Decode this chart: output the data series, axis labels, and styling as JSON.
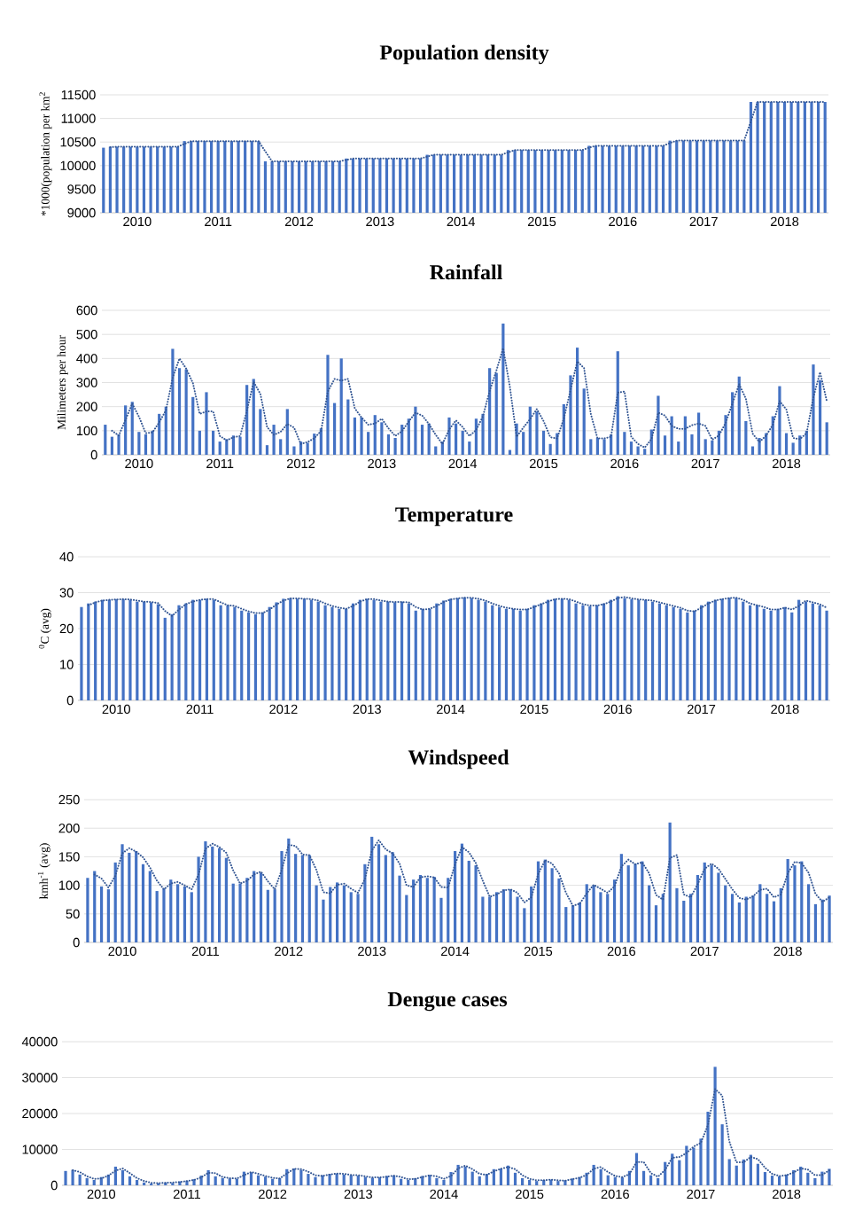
{
  "chart_data": [
    {
      "type": "bar",
      "title": "Population density",
      "ylabel": "*1000(population per km$^{2}$",
      "categories": [
        null,
        null,
        null,
        null,
        null,
        "2010",
        null,
        null,
        null,
        null,
        null,
        null,
        null,
        null,
        null,
        null,
        null,
        "2011",
        null,
        null,
        null,
        null,
        null,
        null,
        null,
        null,
        null,
        null,
        null,
        "2012",
        null,
        null,
        null,
        null,
        null,
        null,
        null,
        null,
        null,
        null,
        null,
        "2013",
        null,
        null,
        null,
        null,
        null,
        null,
        null,
        null,
        null,
        null,
        null,
        "2014",
        null,
        null,
        null,
        null,
        null,
        null,
        null,
        null,
        null,
        null,
        null,
        "2015",
        null,
        null,
        null,
        null,
        null,
        null,
        null,
        null,
        null,
        null,
        null,
        "2016",
        null,
        null,
        null,
        null,
        null,
        null,
        null,
        null,
        null,
        null,
        null,
        "2017",
        null,
        null,
        null,
        null,
        null,
        null,
        null,
        null,
        null,
        null,
        null,
        "2018",
        null,
        null,
        null,
        null,
        null,
        null
      ],
      "series": [
        {
          "color": "#4472c4",
          "values": [
            10380,
            10400,
            10400,
            10400,
            10400,
            10400,
            10400,
            10400,
            10400,
            10400,
            10400,
            10400,
            10520,
            10520,
            10520,
            10520,
            10520,
            10520,
            10520,
            10520,
            10520,
            10520,
            10520,
            10520,
            10090,
            10090,
            10090,
            10090,
            10090,
            10090,
            10090,
            10090,
            10090,
            10090,
            10090,
            10090,
            10150,
            10150,
            10150,
            10150,
            10150,
            10150,
            10150,
            10150,
            10150,
            10150,
            10150,
            10150,
            10230,
            10230,
            10230,
            10230,
            10230,
            10230,
            10230,
            10230,
            10230,
            10230,
            10230,
            10230,
            10330,
            10330,
            10330,
            10330,
            10330,
            10330,
            10330,
            10330,
            10330,
            10330,
            10330,
            10330,
            10420,
            10420,
            10420,
            10420,
            10420,
            10420,
            10420,
            10420,
            10420,
            10420,
            10420,
            10420,
            10530,
            10530,
            10530,
            10530,
            10530,
            10530,
            10530,
            10530,
            10530,
            10530,
            10530,
            10530,
            11350,
            11350,
            11350,
            11350,
            11350,
            11350,
            11350,
            11350,
            11350,
            11350,
            11350,
            11350
          ]
        },
        {
          "type": "line",
          "line_style": "dotted",
          "color": "#335693",
          "values": [
            null,
            10390,
            10400,
            10400,
            10400,
            10400,
            10400,
            10400,
            10400,
            10400,
            10400,
            10400,
            10460,
            10520,
            10520,
            10520,
            10520,
            10520,
            10520,
            10520,
            10520,
            10520,
            10520,
            10520,
            10300,
            10090,
            10090,
            10090,
            10090,
            10090,
            10090,
            10090,
            10090,
            10090,
            10090,
            10090,
            10120,
            10150,
            10150,
            10150,
            10150,
            10150,
            10150,
            10150,
            10150,
            10150,
            10150,
            10150,
            10190,
            10230,
            10230,
            10230,
            10230,
            10230,
            10230,
            10230,
            10230,
            10230,
            10230,
            10230,
            10280,
            10330,
            10330,
            10330,
            10330,
            10330,
            10330,
            10330,
            10330,
            10330,
            10330,
            10330,
            10380,
            10420,
            10420,
            10420,
            10420,
            10420,
            10420,
            10420,
            10420,
            10420,
            10420,
            10420,
            10480,
            10530,
            10530,
            10530,
            10530,
            10530,
            10530,
            10530,
            10530,
            10530,
            10530,
            10530,
            10940,
            11350,
            11350,
            11350,
            11350,
            11350,
            11350,
            11350,
            11350,
            11350,
            11350,
            11350
          ]
        }
      ],
      "ylim": [
        9000,
        11500
      ],
      "yticks": [
        9000,
        9500,
        10000,
        10500,
        11000,
        11500
      ],
      "grid": "y"
    },
    {
      "type": "bar",
      "title": "Rainfall",
      "ylabel": "Milimeters per hour",
      "categories": [
        null,
        null,
        null,
        null,
        null,
        "2010",
        null,
        null,
        null,
        null,
        null,
        null,
        null,
        null,
        null,
        null,
        null,
        "2011",
        null,
        null,
        null,
        null,
        null,
        null,
        null,
        null,
        null,
        null,
        null,
        "2012",
        null,
        null,
        null,
        null,
        null,
        null,
        null,
        null,
        null,
        null,
        null,
        "2013",
        null,
        null,
        null,
        null,
        null,
        null,
        null,
        null,
        null,
        null,
        null,
        "2014",
        null,
        null,
        null,
        null,
        null,
        null,
        null,
        null,
        null,
        null,
        null,
        "2015",
        null,
        null,
        null,
        null,
        null,
        null,
        null,
        null,
        null,
        null,
        null,
        "2016",
        null,
        null,
        null,
        null,
        null,
        null,
        null,
        null,
        null,
        null,
        null,
        "2017",
        null,
        null,
        null,
        null,
        null,
        null,
        null,
        null,
        null,
        null,
        null,
        "2018",
        null,
        null,
        null,
        null,
        null,
        null
      ],
      "series": [
        {
          "color": "#4472c4",
          "values": [
            125,
            75,
            85,
            205,
            220,
            95,
            85,
            100,
            170,
            200,
            440,
            360,
            355,
            240,
            100,
            260,
            100,
            55,
            65,
            80,
            75,
            290,
            315,
            190,
            40,
            125,
            65,
            190,
            35,
            55,
            50,
            88,
            110,
            415,
            215,
            400,
            230,
            155,
            155,
            95,
            165,
            135,
            85,
            70,
            125,
            150,
            200,
            125,
            130,
            35,
            55,
            155,
            130,
            100,
            55,
            150,
            170,
            360,
            340,
            545,
            20,
            130,
            95,
            200,
            180,
            100,
            45,
            90,
            210,
            330,
            445,
            275,
            65,
            70,
            65,
            85,
            430,
            95,
            55,
            35,
            25,
            105,
            245,
            80,
            160,
            55,
            160,
            85,
            175,
            65,
            60,
            100,
            165,
            260,
            325,
            140,
            35,
            70,
            90,
            160,
            285,
            90,
            50,
            80,
            100,
            375,
            310,
            135
          ]
        },
        {
          "type": "line",
          "line_style": "dotted",
          "color": "#335693",
          "values": [
            null,
            100,
            80,
            145,
            213,
            158,
            90,
            93,
            135,
            185,
            320,
            400,
            358,
            298,
            170,
            180,
            180,
            78,
            60,
            73,
            78,
            183,
            303,
            253,
            115,
            83,
            95,
            128,
            113,
            45,
            53,
            69,
            99,
            263,
            315,
            308,
            315,
            193,
            155,
            125,
            130,
            150,
            110,
            78,
            98,
            138,
            175,
            163,
            128,
            83,
            45,
            105,
            143,
            115,
            78,
            103,
            160,
            265,
            350,
            443,
            283,
            75,
            113,
            148,
            190,
            140,
            73,
            68,
            150,
            270,
            388,
            360,
            170,
            68,
            68,
            75,
            258,
            263,
            75,
            45,
            30,
            65,
            175,
            163,
            120,
            108,
            108,
            123,
            130,
            120,
            63,
            80,
            133,
            213,
            293,
            233,
            88,
            53,
            80,
            125,
            223,
            188,
            70,
            65,
            90,
            238,
            343,
            223
          ]
        }
      ],
      "ylim": [
        0,
        600
      ],
      "yticks": [
        0,
        100,
        200,
        300,
        400,
        500,
        600
      ],
      "grid": "y"
    },
    {
      "type": "bar",
      "title": "Temperature",
      "ylabel": "$^{0}$C (avg)",
      "categories": [
        null,
        null,
        null,
        null,
        null,
        "2010",
        null,
        null,
        null,
        null,
        null,
        null,
        null,
        null,
        null,
        null,
        null,
        "2011",
        null,
        null,
        null,
        null,
        null,
        null,
        null,
        null,
        null,
        null,
        null,
        "2012",
        null,
        null,
        null,
        null,
        null,
        null,
        null,
        null,
        null,
        null,
        null,
        "2013",
        null,
        null,
        null,
        null,
        null,
        null,
        null,
        null,
        null,
        null,
        null,
        "2014",
        null,
        null,
        null,
        null,
        null,
        null,
        null,
        null,
        null,
        null,
        null,
        "2015",
        null,
        null,
        null,
        null,
        null,
        null,
        null,
        null,
        null,
        null,
        null,
        "2016",
        null,
        null,
        null,
        null,
        null,
        null,
        null,
        null,
        null,
        null,
        null,
        "2017",
        null,
        null,
        null,
        null,
        null,
        null,
        null,
        null,
        null,
        null,
        null,
        "2018",
        null,
        null,
        null,
        null,
        null,
        null
      ],
      "series": [
        {
          "color": "#4472c4",
          "values": [
            26,
            27,
            27.5,
            28,
            28,
            28.2,
            28.2,
            28,
            27.5,
            27.5,
            27.3,
            26.8,
            23,
            24,
            26.5,
            27,
            28,
            28,
            28.3,
            28,
            26.5,
            26.5,
            26,
            25,
            24.5,
            24,
            24.5,
            26,
            27.3,
            28.3,
            28.5,
            28.3,
            28.3,
            28,
            27.5,
            26.5,
            26,
            25.5,
            25.5,
            27,
            28,
            28.3,
            28,
            27.5,
            27.5,
            27.3,
            27.5,
            27,
            25,
            25.5,
            25.5,
            27,
            27.8,
            28.3,
            28.5,
            28.7,
            28.5,
            28,
            27.5,
            26.5,
            26,
            25.5,
            25.5,
            25,
            25.5,
            26.5,
            27,
            28,
            28.3,
            28.3,
            28,
            27,
            26.5,
            26.2,
            26.5,
            27,
            28,
            29,
            28.5,
            28.2,
            28,
            28,
            27.5,
            27,
            26.5,
            26,
            25.5,
            24.5,
            25,
            26.5,
            27.5,
            28,
            28.3,
            28.6,
            28.5,
            27.5,
            26.5,
            26.5,
            25.5,
            25,
            25.5,
            26,
            24.5,
            28,
            27.5,
            27,
            26.5,
            25
          ]
        },
        {
          "type": "line",
          "line_style": "dotted",
          "color": "#335693",
          "values": [
            null,
            26.5,
            27.3,
            27.8,
            28,
            28.1,
            28.2,
            28.1,
            27.8,
            27.5,
            27.4,
            27.1,
            24.9,
            23.5,
            25.3,
            26.8,
            27.5,
            28,
            28.2,
            28.2,
            27.3,
            26.5,
            26.3,
            25.5,
            24.8,
            24.3,
            24.3,
            25.3,
            26.7,
            27.8,
            28.4,
            28.4,
            28.3,
            28.2,
            27.8,
            27,
            26.3,
            25.8,
            25.5,
            26.3,
            27.5,
            28.2,
            28.2,
            27.8,
            27.5,
            27.4,
            27.4,
            27.3,
            26,
            25.3,
            25.5,
            26.3,
            27.4,
            28.1,
            28.4,
            28.6,
            28.6,
            28.3,
            27.8,
            27,
            26.3,
            25.8,
            25.5,
            25.3,
            25.3,
            26,
            26.8,
            27.5,
            28.2,
            28.3,
            28.2,
            27.5,
            26.8,
            26.4,
            26.4,
            26.8,
            27.5,
            28.5,
            28.8,
            28.4,
            28.1,
            28,
            27.8,
            27.3,
            26.8,
            26.3,
            25.8,
            25,
            24.8,
            25.8,
            27,
            27.8,
            28.2,
            28.5,
            28.6,
            28,
            27,
            26.5,
            26,
            25.3,
            25.3,
            25.8,
            25.3,
            26.3,
            27.8,
            27.3,
            26.8,
            25.8
          ]
        }
      ],
      "ylim": [
        0,
        40
      ],
      "yticks": [
        0,
        10,
        20,
        30,
        40
      ],
      "grid": "y"
    },
    {
      "type": "bar",
      "title": "Windspeed",
      "ylabel": "kmh$^{-1}$ (avg)",
      "categories": [
        null,
        null,
        null,
        null,
        null,
        "2010",
        null,
        null,
        null,
        null,
        null,
        null,
        null,
        null,
        null,
        null,
        null,
        "2011",
        null,
        null,
        null,
        null,
        null,
        null,
        null,
        null,
        null,
        null,
        null,
        "2012",
        null,
        null,
        null,
        null,
        null,
        null,
        null,
        null,
        null,
        null,
        null,
        "2013",
        null,
        null,
        null,
        null,
        null,
        null,
        null,
        null,
        null,
        null,
        null,
        "2014",
        null,
        null,
        null,
        null,
        null,
        null,
        null,
        null,
        null,
        null,
        null,
        "2015",
        null,
        null,
        null,
        null,
        null,
        null,
        null,
        null,
        null,
        null,
        null,
        "2016",
        null,
        null,
        null,
        null,
        null,
        null,
        null,
        null,
        null,
        null,
        null,
        "2017",
        null,
        null,
        null,
        null,
        null,
        null,
        null,
        null,
        null,
        null,
        null,
        "2018",
        null,
        null,
        null,
        null,
        null,
        null
      ],
      "series": [
        {
          "color": "#4472c4",
          "values": [
            113,
            125,
            98,
            93,
            140,
            172,
            157,
            160,
            137,
            125,
            90,
            95,
            110,
            102,
            98,
            88,
            150,
            177,
            168,
            165,
            148,
            103,
            103,
            113,
            125,
            122,
            92,
            93,
            160,
            182,
            155,
            153,
            153,
            100,
            75,
            97,
            105,
            100,
            88,
            85,
            137,
            185,
            172,
            153,
            158,
            117,
            83,
            110,
            118,
            113,
            115,
            78,
            113,
            160,
            173,
            143,
            135,
            80,
            80,
            88,
            93,
            93,
            80,
            60,
            98,
            142,
            145,
            130,
            112,
            62,
            65,
            70,
            102,
            100,
            88,
            85,
            110,
            155,
            135,
            138,
            142,
            100,
            65,
            85,
            210,
            95,
            73,
            85,
            118,
            140,
            135,
            122,
            100,
            85,
            70,
            80,
            82,
            102,
            85,
            72,
            95,
            146,
            135,
            142,
            102,
            67,
            75,
            82
          ]
        },
        {
          "type": "line",
          "line_style": "dotted",
          "color": "#335693",
          "values": [
            null,
            119,
            112,
            96,
            117,
            156,
            165,
            159,
            149,
            131,
            108,
            93,
            103,
            106,
            100,
            93,
            119,
            164,
            173,
            167,
            157,
            126,
            103,
            108,
            119,
            124,
            107,
            93,
            127,
            171,
            169,
            154,
            153,
            127,
            88,
            86,
            101,
            103,
            94,
            87,
            111,
            161,
            179,
            163,
            156,
            138,
            100,
            97,
            114,
            116,
            114,
            97,
            96,
            137,
            167,
            158,
            139,
            108,
            80,
            84,
            91,
            93,
            87,
            70,
            79,
            120,
            144,
            138,
            121,
            87,
            64,
            68,
            86,
            101,
            94,
            87,
            98,
            133,
            145,
            137,
            140,
            121,
            83,
            75,
            148,
            153,
            84,
            79,
            102,
            129,
            138,
            129,
            111,
            93,
            78,
            75,
            81,
            92,
            94,
            79,
            84,
            121,
            141,
            139,
            122,
            85,
            71,
            79
          ]
        }
      ],
      "ylim": [
        0,
        250
      ],
      "yticks": [
        0,
        50,
        100,
        150,
        200,
        250
      ],
      "grid": "y"
    },
    {
      "type": "bar",
      "title": "Dengue cases",
      "categories": [
        null,
        null,
        null,
        null,
        null,
        "2010",
        null,
        null,
        null,
        null,
        null,
        null,
        null,
        null,
        null,
        null,
        null,
        "2011",
        null,
        null,
        null,
        null,
        null,
        null,
        null,
        null,
        null,
        null,
        null,
        "2012",
        null,
        null,
        null,
        null,
        null,
        null,
        null,
        null,
        null,
        null,
        null,
        "2013",
        null,
        null,
        null,
        null,
        null,
        null,
        null,
        null,
        null,
        null,
        null,
        "2014",
        null,
        null,
        null,
        null,
        null,
        null,
        null,
        null,
        null,
        null,
        null,
        "2015",
        null,
        null,
        null,
        null,
        null,
        null,
        null,
        null,
        null,
        null,
        null,
        "2016",
        null,
        null,
        null,
        null,
        null,
        null,
        null,
        null,
        null,
        null,
        null,
        "2017",
        null,
        null,
        null,
        null,
        null,
        null,
        null,
        null,
        null,
        null,
        null,
        "2018",
        null,
        null,
        null,
        null,
        null,
        null
      ],
      "series": [
        {
          "color": "#4472c4",
          "values": [
            4000,
            4300,
            3000,
            2000,
            1500,
            2300,
            3000,
            5200,
            4200,
            2500,
            1500,
            800,
            500,
            600,
            800,
            700,
            1100,
            1300,
            1700,
            2700,
            4200,
            2500,
            2000,
            1900,
            1800,
            3800,
            3600,
            2800,
            2400,
            1800,
            2000,
            4500,
            4700,
            4300,
            3200,
            2300,
            2800,
            3200,
            3300,
            3000,
            2800,
            2700,
            2300,
            2100,
            2200,
            2600,
            2700,
            1800,
            1500,
            2000,
            2600,
            2900,
            2000,
            1500,
            3700,
            5700,
            5200,
            3800,
            2500,
            3200,
            4500,
            4700,
            5500,
            3500,
            2000,
            1500,
            1200,
            1500,
            1600,
            1200,
            1400,
            1900,
            2300,
            3500,
            5700,
            4500,
            2800,
            2300,
            2200,
            4000,
            9000,
            4000,
            2800,
            2000,
            6500,
            8800,
            7000,
            11000,
            10500,
            13000,
            20500,
            33000,
            17000,
            7300,
            5500,
            7200,
            8500,
            6000,
            3700,
            2700,
            2500,
            3000,
            4200,
            5200,
            3500,
            2000,
            3800,
            4600
          ]
        },
        {
          "type": "line",
          "line_style": "dotted",
          "color": "#335693",
          "values": [
            null,
            4200,
            3700,
            2500,
            1800,
            1900,
            2700,
            4100,
            4700,
            3400,
            2000,
            1200,
            700,
            600,
            700,
            800,
            900,
            1200,
            1500,
            2200,
            3500,
            3400,
            2300,
            2000,
            1900,
            2800,
            3700,
            3200,
            2600,
            2100,
            1900,
            3300,
            4600,
            4500,
            3800,
            2800,
            2600,
            3000,
            3300,
            3200,
            2900,
            2800,
            2500,
            2200,
            2200,
            2400,
            2700,
            2300,
            1700,
            1800,
            2300,
            2800,
            2500,
            1800,
            2600,
            4700,
            5500,
            4500,
            3200,
            2900,
            3900,
            4600,
            5100,
            4500,
            2800,
            1800,
            1400,
            1400,
            1600,
            1400,
            1300,
            1700,
            2100,
            2900,
            4600,
            5100,
            3700,
            2600,
            2300,
            3100,
            6500,
            6500,
            3400,
            2400,
            4300,
            7700,
            7900,
            9000,
            10800,
            11800,
            16800,
            26800,
            25000,
            12200,
            6400,
            6400,
            7900,
            7300,
            4900,
            3200,
            2600,
            2800,
            3600,
            4700,
            4400,
            2800,
            2900,
            4200
          ]
        }
      ],
      "ylim": [
        0,
        40000
      ],
      "yticks": [
        0,
        10000,
        20000,
        30000,
        40000
      ],
      "grid": "y"
    }
  ]
}
